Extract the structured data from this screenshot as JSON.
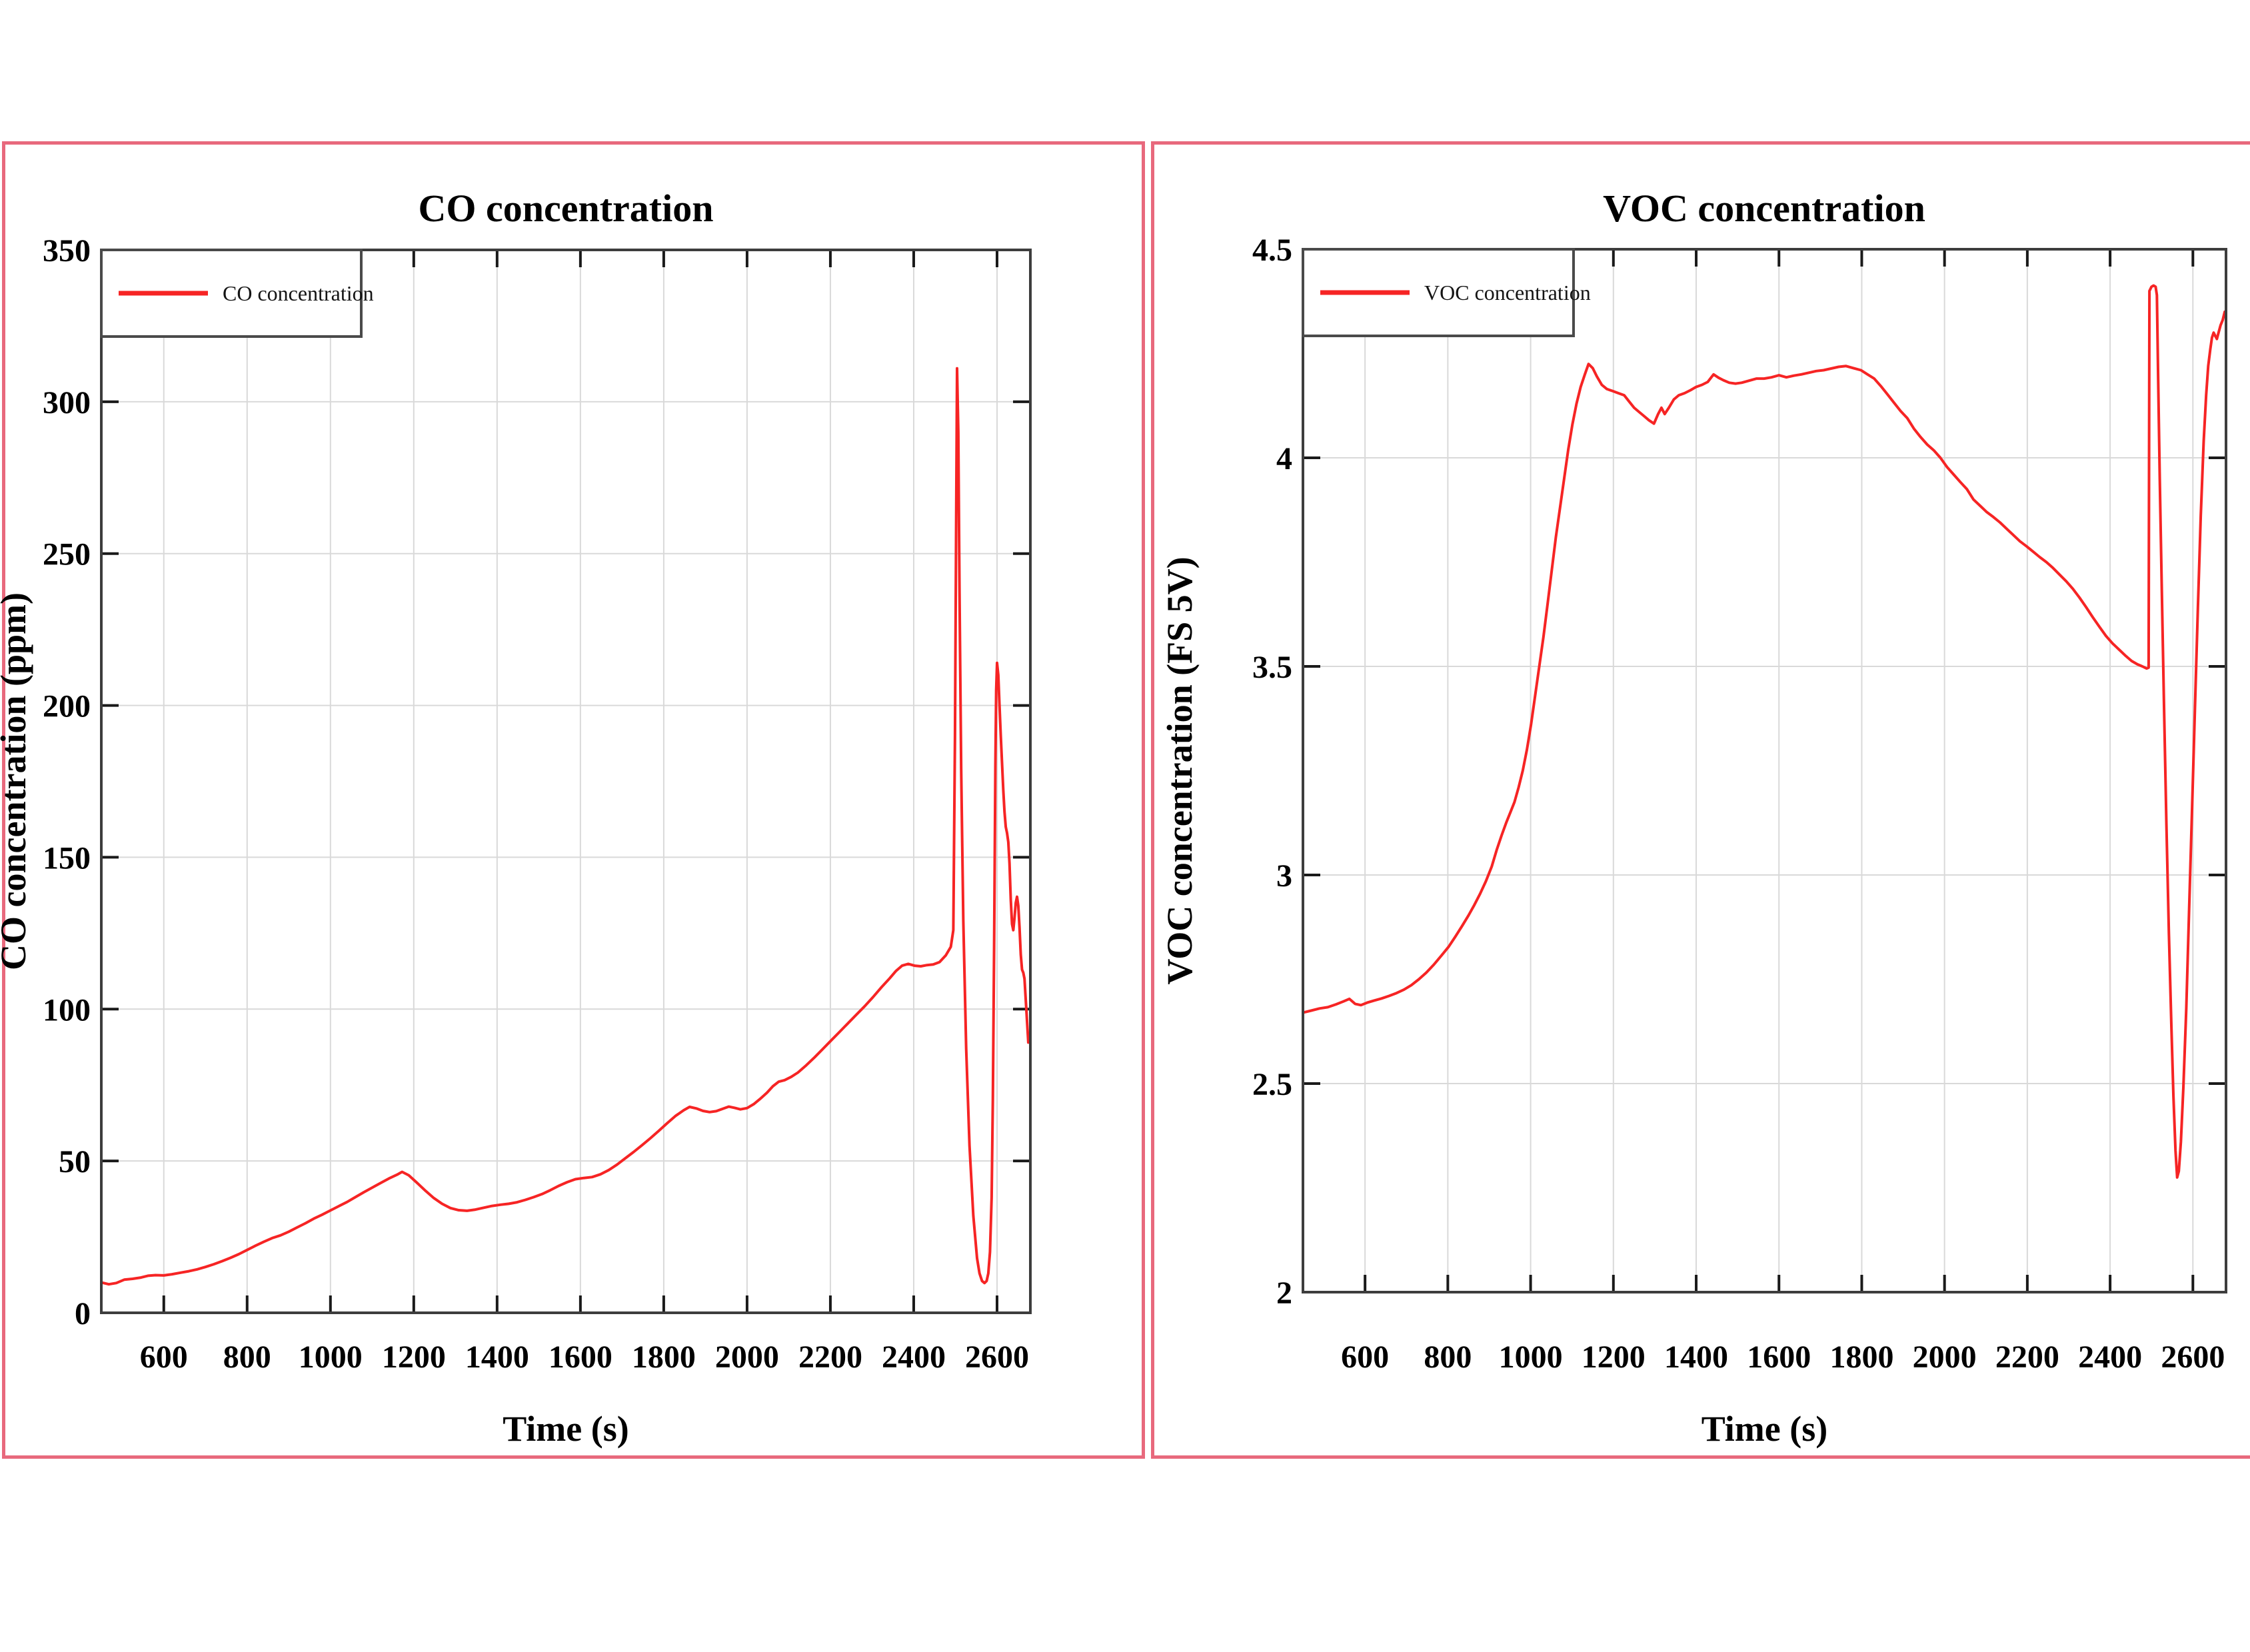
{
  "figure": {
    "background": "#ffffff",
    "panel_border_color": "#e8697d",
    "grid_color": "#d9d9d9",
    "frame_color": "#3d3d3d",
    "tick_color": "#1a1a1a",
    "series_red": "#f62424"
  },
  "chart_data": [
    {
      "type": "line",
      "title": "CO concentration",
      "xlabel": "Time (s)",
      "ylabel": "CO concentration (ppm)",
      "legend_label": "CO concentration",
      "legend_position": "top-left",
      "grid": true,
      "line_color": "#f62424",
      "xlim": [
        450,
        2680
      ],
      "ylim": [
        0,
        350
      ],
      "xticks": [
        600,
        800,
        1000,
        1200,
        1400,
        1600,
        1800,
        2000,
        2200,
        2400,
        2600
      ],
      "xticklabels": [
        "600",
        "800",
        "1000",
        "1200",
        "1400",
        "1600",
        "1800",
        "2000",
        "2200",
        "2400",
        "2600"
      ],
      "yticks": [
        0,
        50,
        100,
        150,
        200,
        250,
        300,
        350
      ],
      "yticklabels": [
        "0",
        "50",
        "100",
        "150",
        "200",
        "250",
        "300",
        "350"
      ],
      "points": [
        [
          450,
          10
        ],
        [
          468,
          9.4
        ],
        [
          486,
          9.8
        ],
        [
          505,
          10.9
        ],
        [
          525,
          11.2
        ],
        [
          545,
          11.6
        ],
        [
          562,
          12.2
        ],
        [
          580,
          12.4
        ],
        [
          600,
          12.3
        ],
        [
          620,
          12.7
        ],
        [
          640,
          13.2
        ],
        [
          660,
          13.7
        ],
        [
          680,
          14.3
        ],
        [
          700,
          15.1
        ],
        [
          720,
          16
        ],
        [
          740,
          17
        ],
        [
          760,
          18.1
        ],
        [
          780,
          19.3
        ],
        [
          800,
          20.7
        ],
        [
          820,
          22.1
        ],
        [
          840,
          23.4
        ],
        [
          860,
          24.6
        ],
        [
          880,
          25.5
        ],
        [
          900,
          26.7
        ],
        [
          920,
          28.1
        ],
        [
          940,
          29.5
        ],
        [
          960,
          31
        ],
        [
          980,
          32.3
        ],
        [
          1000,
          33.7
        ],
        [
          1020,
          35.1
        ],
        [
          1040,
          36.5
        ],
        [
          1060,
          38.1
        ],
        [
          1080,
          39.7
        ],
        [
          1100,
          41.2
        ],
        [
          1120,
          42.7
        ],
        [
          1140,
          44.2
        ],
        [
          1160,
          45.5
        ],
        [
          1172,
          46.4
        ],
        [
          1188,
          45.3
        ],
        [
          1208,
          42.8
        ],
        [
          1228,
          40.2
        ],
        [
          1248,
          37.8
        ],
        [
          1268,
          35.9
        ],
        [
          1288,
          34.5
        ],
        [
          1308,
          33.8
        ],
        [
          1328,
          33.6
        ],
        [
          1348,
          34
        ],
        [
          1368,
          34.6
        ],
        [
          1388,
          35.2
        ],
        [
          1408,
          35.6
        ],
        [
          1428,
          35.9
        ],
        [
          1448,
          36.4
        ],
        [
          1468,
          37.2
        ],
        [
          1488,
          38.1
        ],
        [
          1508,
          39.1
        ],
        [
          1528,
          40.4
        ],
        [
          1548,
          41.8
        ],
        [
          1568,
          43
        ],
        [
          1588,
          44
        ],
        [
          1608,
          44.4
        ],
        [
          1628,
          44.7
        ],
        [
          1648,
          45.6
        ],
        [
          1668,
          47
        ],
        [
          1688,
          48.8
        ],
        [
          1708,
          50.9
        ],
        [
          1728,
          53
        ],
        [
          1748,
          55.2
        ],
        [
          1768,
          57.5
        ],
        [
          1788,
          59.9
        ],
        [
          1808,
          62.4
        ],
        [
          1828,
          64.8
        ],
        [
          1848,
          66.7
        ],
        [
          1862,
          67.8
        ],
        [
          1878,
          67.3
        ],
        [
          1894,
          66.5
        ],
        [
          1910,
          66.1
        ],
        [
          1926,
          66.4
        ],
        [
          1942,
          67.2
        ],
        [
          1956,
          67.9
        ],
        [
          1970,
          67.5
        ],
        [
          1984,
          67
        ],
        [
          2000,
          67.4
        ],
        [
          2016,
          68.7
        ],
        [
          2032,
          70.5
        ],
        [
          2048,
          72.5
        ],
        [
          2062,
          74.6
        ],
        [
          2076,
          76.1
        ],
        [
          2090,
          76.6
        ],
        [
          2106,
          77.7
        ],
        [
          2122,
          79.1
        ],
        [
          2142,
          81.5
        ],
        [
          2162,
          84.1
        ],
        [
          2182,
          86.9
        ],
        [
          2202,
          89.7
        ],
        [
          2222,
          92.5
        ],
        [
          2242,
          95.3
        ],
        [
          2262,
          98.1
        ],
        [
          2282,
          100.9
        ],
        [
          2302,
          103.9
        ],
        [
          2322,
          107.1
        ],
        [
          2342,
          110.1
        ],
        [
          2357,
          112.5
        ],
        [
          2372,
          114.3
        ],
        [
          2387,
          114.9
        ],
        [
          2402,
          114.3
        ],
        [
          2417,
          114.1
        ],
        [
          2432,
          114.5
        ],
        [
          2447,
          114.7
        ],
        [
          2462,
          115.5
        ],
        [
          2477,
          117.7
        ],
        [
          2489,
          120.5
        ],
        [
          2495,
          126
        ],
        [
          2499,
          190
        ],
        [
          2502,
          262
        ],
        [
          2504,
          311
        ],
        [
          2507,
          290
        ],
        [
          2510,
          237
        ],
        [
          2514,
          179
        ],
        [
          2519,
          129
        ],
        [
          2526,
          87
        ],
        [
          2534,
          55
        ],
        [
          2543,
          32
        ],
        [
          2552,
          18
        ],
        [
          2558,
          13
        ],
        [
          2564,
          10.5
        ],
        [
          2570,
          9.8
        ],
        [
          2575,
          10.5
        ],
        [
          2579,
          13
        ],
        [
          2583,
          20
        ],
        [
          2587,
          38
        ],
        [
          2590,
          70
        ],
        [
          2593,
          120
        ],
        [
          2596,
          180
        ],
        [
          2598,
          205
        ],
        [
          2600,
          214
        ],
        [
          2603,
          210
        ],
        [
          2606,
          200
        ],
        [
          2609,
          190
        ],
        [
          2612,
          181
        ],
        [
          2615,
          172
        ],
        [
          2618,
          165
        ],
        [
          2621,
          160
        ],
        [
          2624,
          158
        ],
        [
          2627,
          155
        ],
        [
          2630,
          148
        ],
        [
          2633,
          136
        ],
        [
          2636,
          128
        ],
        [
          2639,
          126
        ],
        [
          2642,
          130
        ],
        [
          2645,
          135
        ],
        [
          2648,
          137
        ],
        [
          2651,
          134
        ],
        [
          2654,
          127
        ],
        [
          2657,
          118
        ],
        [
          2660,
          113
        ],
        [
          2663,
          112
        ],
        [
          2666,
          110
        ],
        [
          2669,
          103
        ],
        [
          2672,
          96
        ],
        [
          2675,
          89
        ]
      ]
    },
    {
      "type": "line",
      "title": "VOC concentration",
      "xlabel": "Time (s)",
      "ylabel": "VOC concentration (FS 5V)",
      "legend_label": "VOC concentration",
      "legend_position": "top-left",
      "grid": true,
      "line_color": "#f62424",
      "xlim": [
        450,
        2680
      ],
      "ylim": [
        2,
        4.5
      ],
      "xticks": [
        600,
        800,
        1000,
        1200,
        1400,
        1600,
        1800,
        2000,
        2200,
        2400,
        2600
      ],
      "xticklabels": [
        "600",
        "800",
        "1000",
        "1200",
        "1400",
        "1600",
        "1800",
        "2000",
        "2200",
        "2400",
        "2600"
      ],
      "yticks": [
        2,
        2.5,
        3,
        3.5,
        4,
        4.5
      ],
      "yticklabels": [
        "2",
        "2.5",
        "3",
        "3.5",
        "4",
        "4.5"
      ],
      "points": [
        [
          450,
          2.67
        ],
        [
          470,
          2.675
        ],
        [
          490,
          2.68
        ],
        [
          510,
          2.683
        ],
        [
          530,
          2.69
        ],
        [
          548,
          2.697
        ],
        [
          562,
          2.703
        ],
        [
          576,
          2.691
        ],
        [
          590,
          2.688
        ],
        [
          605,
          2.694
        ],
        [
          622,
          2.699
        ],
        [
          640,
          2.704
        ],
        [
          658,
          2.71
        ],
        [
          676,
          2.717
        ],
        [
          694,
          2.725
        ],
        [
          712,
          2.736
        ],
        [
          730,
          2.75
        ],
        [
          748,
          2.766
        ],
        [
          766,
          2.785
        ],
        [
          784,
          2.806
        ],
        [
          802,
          2.828
        ],
        [
          818,
          2.852
        ],
        [
          834,
          2.877
        ],
        [
          850,
          2.903
        ],
        [
          864,
          2.928
        ],
        [
          878,
          2.955
        ],
        [
          892,
          2.985
        ],
        [
          906,
          3.02
        ],
        [
          918,
          3.06
        ],
        [
          930,
          3.095
        ],
        [
          941,
          3.125
        ],
        [
          951,
          3.15
        ],
        [
          961,
          3.175
        ],
        [
          971,
          3.21
        ],
        [
          981,
          3.25
        ],
        [
          991,
          3.3
        ],
        [
          1001,
          3.36
        ],
        [
          1011,
          3.43
        ],
        [
          1021,
          3.5
        ],
        [
          1031,
          3.57
        ],
        [
          1041,
          3.65
        ],
        [
          1051,
          3.73
        ],
        [
          1061,
          3.81
        ],
        [
          1071,
          3.88
        ],
        [
          1081,
          3.95
        ],
        [
          1091,
          4.02
        ],
        [
          1101,
          4.08
        ],
        [
          1111,
          4.13
        ],
        [
          1121,
          4.17
        ],
        [
          1131,
          4.2
        ],
        [
          1140,
          4.225
        ],
        [
          1150,
          4.215
        ],
        [
          1160,
          4.195
        ],
        [
          1172,
          4.175
        ],
        [
          1184,
          4.165
        ],
        [
          1198,
          4.16
        ],
        [
          1212,
          4.155
        ],
        [
          1226,
          4.15
        ],
        [
          1238,
          4.135
        ],
        [
          1250,
          4.12
        ],
        [
          1262,
          4.11
        ],
        [
          1274,
          4.1
        ],
        [
          1286,
          4.09
        ],
        [
          1298,
          4.082
        ],
        [
          1308,
          4.105
        ],
        [
          1316,
          4.12
        ],
        [
          1324,
          4.105
        ],
        [
          1334,
          4.12
        ],
        [
          1346,
          4.14
        ],
        [
          1358,
          4.15
        ],
        [
          1372,
          4.155
        ],
        [
          1386,
          4.162
        ],
        [
          1400,
          4.17
        ],
        [
          1414,
          4.175
        ],
        [
          1428,
          4.182
        ],
        [
          1442,
          4.2
        ],
        [
          1454,
          4.192
        ],
        [
          1466,
          4.186
        ],
        [
          1480,
          4.18
        ],
        [
          1495,
          4.178
        ],
        [
          1510,
          4.18
        ],
        [
          1528,
          4.185
        ],
        [
          1546,
          4.19
        ],
        [
          1564,
          4.19
        ],
        [
          1582,
          4.193
        ],
        [
          1600,
          4.198
        ],
        [
          1618,
          4.193
        ],
        [
          1636,
          4.197
        ],
        [
          1654,
          4.2
        ],
        [
          1672,
          4.204
        ],
        [
          1690,
          4.208
        ],
        [
          1708,
          4.21
        ],
        [
          1726,
          4.214
        ],
        [
          1744,
          4.218
        ],
        [
          1762,
          4.22
        ],
        [
          1780,
          4.215
        ],
        [
          1798,
          4.21
        ],
        [
          1814,
          4.2
        ],
        [
          1830,
          4.19
        ],
        [
          1846,
          4.172
        ],
        [
          1862,
          4.152
        ],
        [
          1878,
          4.132
        ],
        [
          1894,
          4.112
        ],
        [
          1910,
          4.095
        ],
        [
          1926,
          4.07
        ],
        [
          1942,
          4.05
        ],
        [
          1958,
          4.032
        ],
        [
          1974,
          4.018
        ],
        [
          1990,
          4.0
        ],
        [
          2006,
          3.978
        ],
        [
          2022,
          3.96
        ],
        [
          2038,
          3.942
        ],
        [
          2054,
          3.925
        ],
        [
          2070,
          3.9
        ],
        [
          2086,
          3.885
        ],
        [
          2102,
          3.87
        ],
        [
          2118,
          3.858
        ],
        [
          2134,
          3.845
        ],
        [
          2150,
          3.83
        ],
        [
          2166,
          3.815
        ],
        [
          2182,
          3.8
        ],
        [
          2198,
          3.788
        ],
        [
          2214,
          3.775
        ],
        [
          2230,
          3.762
        ],
        [
          2246,
          3.75
        ],
        [
          2262,
          3.736
        ],
        [
          2278,
          3.72
        ],
        [
          2294,
          3.704
        ],
        [
          2310,
          3.686
        ],
        [
          2326,
          3.665
        ],
        [
          2342,
          3.642
        ],
        [
          2358,
          3.618
        ],
        [
          2374,
          3.595
        ],
        [
          2390,
          3.573
        ],
        [
          2406,
          3.555
        ],
        [
          2422,
          3.54
        ],
        [
          2438,
          3.525
        ],
        [
          2452,
          3.513
        ],
        [
          2466,
          3.505
        ],
        [
          2478,
          3.5
        ],
        [
          2488,
          3.495
        ],
        [
          2493,
          3.497
        ],
        [
          2495,
          4.4
        ],
        [
          2500,
          4.41
        ],
        [
          2505,
          4.413
        ],
        [
          2510,
          4.41
        ],
        [
          2513,
          4.39
        ],
        [
          2516,
          4.2
        ],
        [
          2520,
          3.95
        ],
        [
          2525,
          3.68
        ],
        [
          2530,
          3.42
        ],
        [
          2536,
          3.12
        ],
        [
          2542,
          2.86
        ],
        [
          2548,
          2.64
        ],
        [
          2553,
          2.47
        ],
        [
          2558,
          2.34
        ],
        [
          2562,
          2.275
        ],
        [
          2566,
          2.29
        ],
        [
          2571,
          2.36
        ],
        [
          2577,
          2.49
        ],
        [
          2584,
          2.68
        ],
        [
          2591,
          2.92
        ],
        [
          2598,
          3.16
        ],
        [
          2605,
          3.4
        ],
        [
          2612,
          3.64
        ],
        [
          2619,
          3.86
        ],
        [
          2626,
          4.04
        ],
        [
          2632,
          4.15
        ],
        [
          2637,
          4.22
        ],
        [
          2642,
          4.26
        ],
        [
          2646,
          4.288
        ],
        [
          2650,
          4.3
        ],
        [
          2654,
          4.292
        ],
        [
          2658,
          4.285
        ],
        [
          2662,
          4.3
        ],
        [
          2667,
          4.318
        ],
        [
          2672,
          4.33
        ],
        [
          2677,
          4.35
        ]
      ]
    }
  ]
}
